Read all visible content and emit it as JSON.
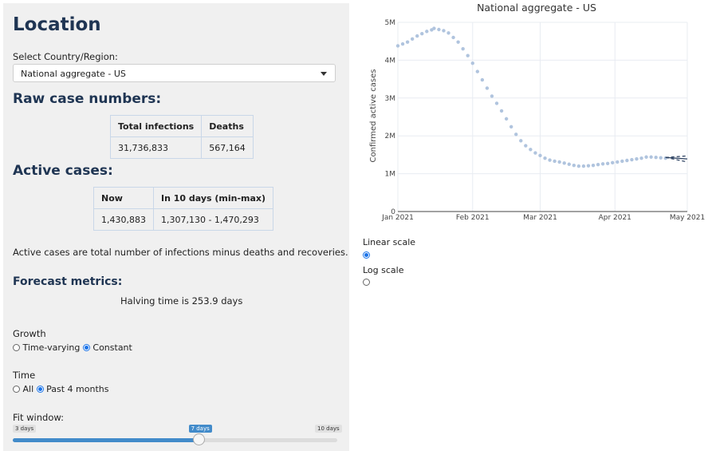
{
  "location": {
    "title": "Location",
    "select_label": "Select Country/Region:",
    "selected": "National aggregate - US"
  },
  "raw": {
    "title": "Raw case numbers:",
    "headers": [
      "Total infections",
      "Deaths"
    ],
    "values": [
      "31,736,833",
      "567,164"
    ]
  },
  "active": {
    "title": "Active cases:",
    "headers": [
      "Now",
      "In 10 days (min-max)"
    ],
    "values": [
      "1,430,883",
      "1,307,130 - 1,470,293"
    ],
    "note": "Active cases are total number of infections minus deaths and recoveries."
  },
  "forecast": {
    "title": "Forecast metrics:",
    "halving": "Halving time is 253.9 days"
  },
  "growth": {
    "label": "Growth",
    "options": [
      "Time-varying",
      "Constant"
    ],
    "selected": "Constant"
  },
  "time": {
    "label": "Time",
    "options": [
      "All",
      "Past 4 months"
    ],
    "selected": "Past 4 months"
  },
  "fit": {
    "label": "Fit window:",
    "min_label": "3 days",
    "max_label": "10 days",
    "value_label": "7 days",
    "min": 3,
    "max": 10,
    "value": 7
  },
  "scale": {
    "options": [
      "Linear scale",
      "Log scale"
    ],
    "selected": "Linear scale"
  },
  "colors": {
    "accent": "#428bca",
    "heading": "#1f3553",
    "series": "#b0c4de",
    "forecast": "#2a3f5f"
  },
  "chart_data": {
    "type": "scatter",
    "title": "National aggregate - US",
    "ylabel": "Confirmed active cases",
    "xlabel": "",
    "x_ticks": [
      "Jan 2021",
      "Feb 2021",
      "Mar 2021",
      "Apr 2021",
      "May 2021"
    ],
    "y_ticks": [
      "0",
      "1M",
      "2M",
      "3M",
      "4M",
      "5M"
    ],
    "xlim": [
      "2021-01-01",
      "2021-05-01"
    ],
    "ylim": [
      0,
      5000000
    ],
    "grid": true,
    "series": [
      {
        "type": "observed",
        "points": [
          [
            "2021-01-01",
            4380000
          ],
          [
            "2021-01-03",
            4430000
          ],
          [
            "2021-01-05",
            4480000
          ],
          [
            "2021-01-07",
            4560000
          ],
          [
            "2021-01-09",
            4640000
          ],
          [
            "2021-01-11",
            4700000
          ],
          [
            "2021-01-13",
            4760000
          ],
          [
            "2021-01-15",
            4800000
          ],
          [
            "2021-01-16",
            4840000
          ],
          [
            "2021-01-18",
            4810000
          ],
          [
            "2021-01-20",
            4780000
          ],
          [
            "2021-01-22",
            4720000
          ],
          [
            "2021-01-24",
            4600000
          ],
          [
            "2021-01-26",
            4480000
          ],
          [
            "2021-01-28",
            4300000
          ],
          [
            "2021-01-30",
            4120000
          ],
          [
            "2021-02-01",
            3920000
          ],
          [
            "2021-02-03",
            3700000
          ],
          [
            "2021-02-05",
            3480000
          ],
          [
            "2021-02-07",
            3260000
          ],
          [
            "2021-02-09",
            3050000
          ],
          [
            "2021-02-11",
            2860000
          ],
          [
            "2021-02-13",
            2660000
          ],
          [
            "2021-02-15",
            2450000
          ],
          [
            "2021-02-17",
            2240000
          ],
          [
            "2021-02-19",
            2040000
          ],
          [
            "2021-02-21",
            1870000
          ],
          [
            "2021-02-23",
            1740000
          ],
          [
            "2021-02-25",
            1640000
          ],
          [
            "2021-02-27",
            1550000
          ],
          [
            "2021-03-01",
            1480000
          ],
          [
            "2021-03-03",
            1410000
          ],
          [
            "2021-03-05",
            1360000
          ],
          [
            "2021-03-07",
            1330000
          ],
          [
            "2021-03-09",
            1310000
          ],
          [
            "2021-03-11",
            1280000
          ],
          [
            "2021-03-13",
            1250000
          ],
          [
            "2021-03-15",
            1220000
          ],
          [
            "2021-03-17",
            1200000
          ],
          [
            "2021-03-19",
            1200000
          ],
          [
            "2021-03-21",
            1210000
          ],
          [
            "2021-03-23",
            1220000
          ],
          [
            "2021-03-25",
            1240000
          ],
          [
            "2021-03-27",
            1260000
          ],
          [
            "2021-03-29",
            1270000
          ],
          [
            "2021-03-31",
            1290000
          ],
          [
            "2021-04-02",
            1310000
          ],
          [
            "2021-04-04",
            1330000
          ],
          [
            "2021-04-06",
            1350000
          ],
          [
            "2021-04-08",
            1370000
          ],
          [
            "2021-04-10",
            1390000
          ],
          [
            "2021-04-12",
            1410000
          ],
          [
            "2021-04-14",
            1440000
          ],
          [
            "2021-04-16",
            1440000
          ],
          [
            "2021-04-18",
            1430000
          ],
          [
            "2021-04-20",
            1420000
          ],
          [
            "2021-04-22",
            1410000
          ]
        ]
      },
      {
        "type": "forecast",
        "central": [
          [
            "2021-04-22",
            1430000
          ],
          [
            "2021-05-01",
            1390000
          ]
        ],
        "upper": [
          [
            "2021-04-22",
            1430000
          ],
          [
            "2021-05-01",
            1470000
          ]
        ],
        "lower": [
          [
            "2021-04-22",
            1430000
          ],
          [
            "2021-05-01",
            1310000
          ]
        ]
      }
    ]
  }
}
